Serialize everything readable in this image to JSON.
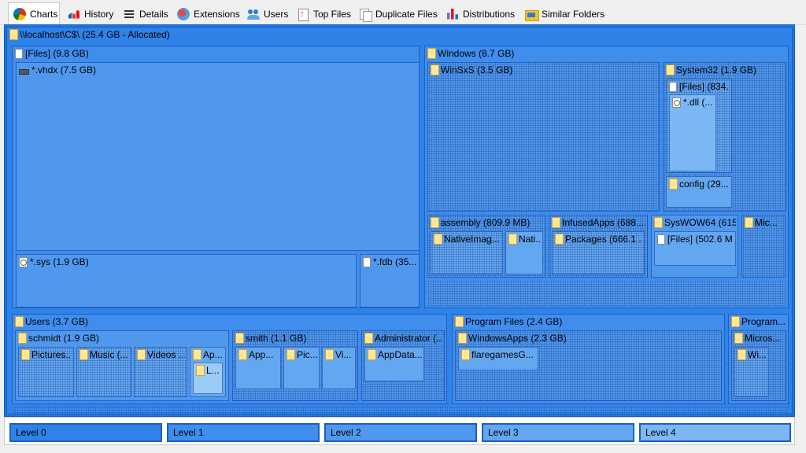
{
  "tabs": [
    {
      "label": "Charts",
      "icon": "pie-chart-icon",
      "active": true
    },
    {
      "label": "History",
      "icon": "history-chart-icon"
    },
    {
      "label": "Details",
      "icon": "details-list-icon"
    },
    {
      "label": "Extensions",
      "icon": "extensions-icon"
    },
    {
      "label": "Users",
      "icon": "users-icon"
    },
    {
      "label": "Top Files",
      "icon": "top-files-icon"
    },
    {
      "label": "Duplicate Files",
      "icon": "duplicate-files-icon"
    },
    {
      "label": "Distributions",
      "icon": "distributions-icon"
    },
    {
      "label": "Similar Folders",
      "icon": "similar-folders-icon"
    }
  ],
  "treemap": {
    "root": "\\\\localhost\\C$\\ (25.4 GB - Allocated)",
    "files": "[Files] (9.8 GB)",
    "vhdx": "*.vhdx (7.5 GB)",
    "sys": "*.sys (1.9 GB)",
    "fdb": "*.fdb (35...",
    "windows": "Windows (8.7 GB)",
    "winsxs": "WinSxS (3.5 GB)",
    "system32": "System32 (1.9 GB)",
    "sys32_files": "[Files] (834...",
    "dll": "*.dll (...",
    "config": "config (29...",
    "assembly": "assembly (809.9 MB)",
    "nativemag1": "NativeImag...",
    "nativemag2": "Nati...",
    "infusedapps": "InfusedApps (688....",
    "packages": "Packages (666.1 ...",
    "syswow64": "SysWOW64 (615....",
    "syswow_files": "[Files] (502.6 M...",
    "mic": "Mic...",
    "users": "Users (3.7 GB)",
    "schmidt": "schmidt (1.9 GB)",
    "pictures": "Pictures...",
    "music": "Music (...",
    "videos": "Videos ...",
    "ap": "Ap...",
    "l": "L...",
    "smith": "smith (1.1 GB)",
    "app": "App...",
    "pic": "Pic...",
    "vi": "Vi...",
    "administrator": "Administrator (...",
    "appdata": "AppData...",
    "program_files": "Program Files (2.4 GB)",
    "windowsapps": "WindowsApps (2.3 GB)",
    "flaregames": "flaregamesG...",
    "program_x86": "Program...",
    "micros": "Micros...",
    "wi": "Wi..."
  },
  "legend": {
    "levels": [
      {
        "label": "Level 0",
        "color": "#2f82e8"
      },
      {
        "label": "Level 1",
        "color": "#3f8ded"
      },
      {
        "label": "Level 2",
        "color": "#4f98ee"
      },
      {
        "label": "Level 3",
        "color": "#64a7f1"
      },
      {
        "label": "Level 4",
        "color": "#7bb7f4"
      }
    ]
  }
}
